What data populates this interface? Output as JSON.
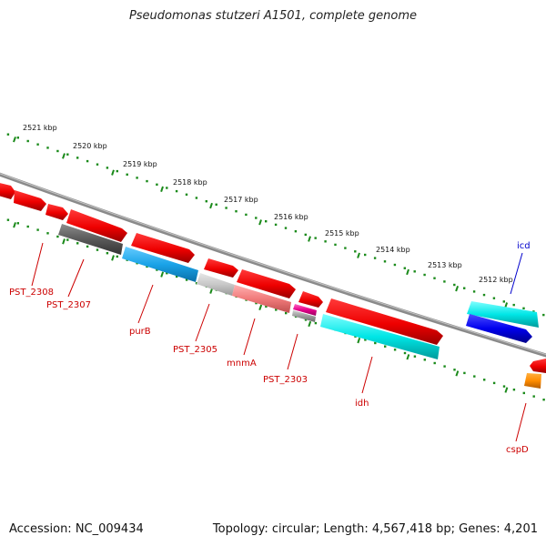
{
  "title": "Pseudomonas stutzeri A1501, complete genome",
  "accession_text": "Accession: NC_009434",
  "stats_text": "Topology: circular; Length: 4,567,418 bp; Genes: 4,201",
  "colors": {
    "backbone": "#8a8a8a",
    "tick": "#1a8a1a",
    "label_red": "#cc0000",
    "label_blue": "#0000cc"
  },
  "scale_labels": [
    "2521 kbp",
    "2520 kbp",
    "2519 kbp",
    "2518 kbp",
    "2517 kbp",
    "2516 kbp",
    "2515 kbp",
    "2514 kbp",
    "2513 kbp",
    "2512 kbp"
  ],
  "gene_labels": [
    "PST_2308",
    "PST_2307",
    "purB",
    "PST_2305",
    "mnmA",
    "PST_2303",
    "idh",
    "icd",
    "cspD"
  ]
}
